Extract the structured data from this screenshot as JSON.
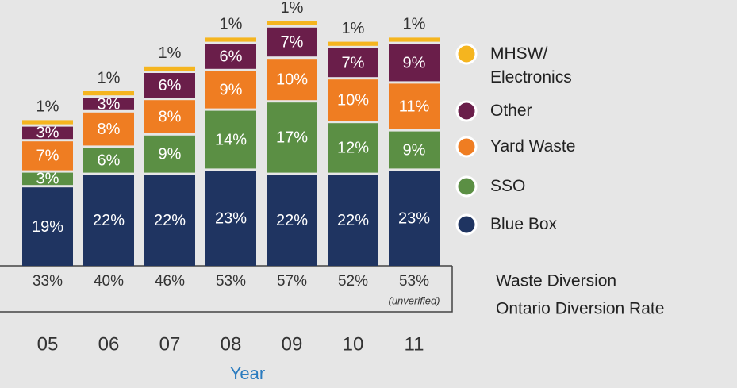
{
  "chart_data": {
    "type": "stacked_bar",
    "categories": [
      "05",
      "06",
      "07",
      "08",
      "09",
      "10",
      "11"
    ],
    "x_label": "Year",
    "series": [
      {
        "name": "Blue Box",
        "color": "#1f3461",
        "values": [
          19,
          22,
          22,
          23,
          22,
          22,
          23
        ],
        "value_labels": [
          "19%",
          "22%",
          "22%",
          "23%",
          "22%",
          "22%",
          "23%"
        ]
      },
      {
        "name": "SSO",
        "color": "#5b8f44",
        "values": [
          3,
          6,
          9,
          14,
          17,
          12,
          9
        ],
        "value_labels": [
          "3%",
          "6%",
          "9%",
          "14%",
          "17%",
          "12%",
          "9%"
        ]
      },
      {
        "name": "Yard Waste",
        "color": "#ef7d22",
        "values": [
          7,
          8,
          8,
          9,
          10,
          10,
          11
        ],
        "value_labels": [
          "7%",
          "8%",
          "8%",
          "9%",
          "10%",
          "10%",
          "11%"
        ]
      },
      {
        "name": "Other",
        "color": "#6a1e4a",
        "values": [
          3,
          3,
          6,
          6,
          7,
          7,
          9
        ],
        "value_labels": [
          "3%",
          "3%",
          "6%",
          "6%",
          "7%",
          "7%",
          "9%"
        ]
      },
      {
        "name": "MHSW/ Electronics",
        "color": "#f5b51f",
        "values": [
          1,
          1,
          1,
          1,
          1,
          1,
          1
        ],
        "value_labels": [
          "1%",
          "1%",
          "1%",
          "1%",
          "1%",
          "1%",
          "1%"
        ]
      }
    ],
    "diversion_rate": {
      "label": [
        "Waste Diversion",
        "Ontario Diversion Rate"
      ],
      "values": [
        33,
        40,
        46,
        53,
        57,
        52,
        53
      ],
      "value_labels": [
        "33%",
        "40%",
        "46%",
        "53%",
        "57%",
        "52%",
        "53%"
      ],
      "annotation": {
        "category": "11",
        "text": "(unverified)"
      }
    }
  }
}
